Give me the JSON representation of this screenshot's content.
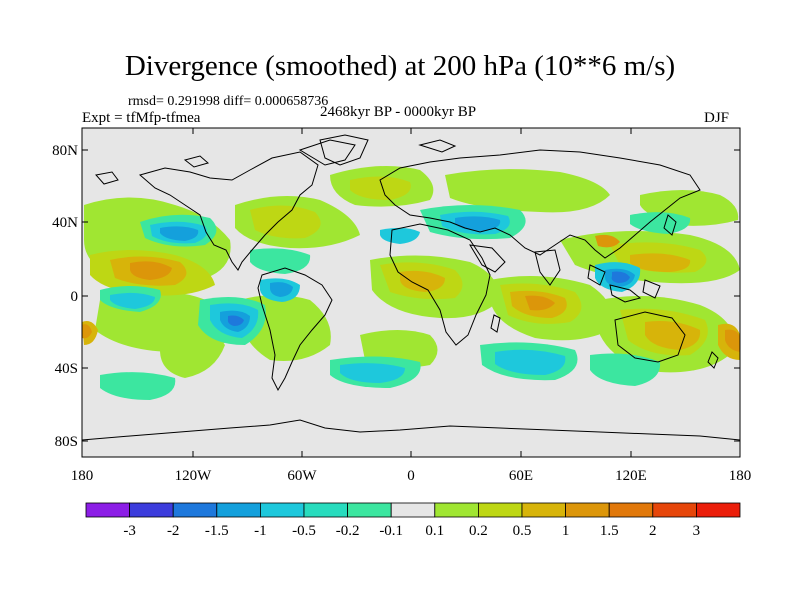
{
  "title": "Divergence (smoothed) at 200 hPa (10**6 m/s)",
  "subtitle_stats": "rmsd= 0.291998 diff= 0.000658736",
  "experiment": "Expt = tfMfp-tfmea",
  "period": "2468kyr BP - 0000kyr BP",
  "season": "DJF",
  "map": {
    "lat_ticks": [
      "80N",
      "40N",
      "0",
      "40S",
      "80S"
    ],
    "lon_ticks": [
      "180",
      "120W",
      "60W",
      "0",
      "60E",
      "120E",
      "180"
    ]
  },
  "colorbar": {
    "colors": [
      "#8c1ee6",
      "#3c3cdc",
      "#1e78dc",
      "#14a0dc",
      "#1ec8dc",
      "#28dcbe",
      "#3ce6a0",
      "#e6e6e6",
      "#a0e632",
      "#bed714",
      "#d7b40a",
      "#dc960a",
      "#e1780a",
      "#e6460a",
      "#eb1e0a"
    ],
    "labels": [
      "-3",
      "-2",
      "-1.5",
      "-1",
      "-0.5",
      "-0.2",
      "-0.1",
      "0.1",
      "0.2",
      "0.5",
      "1",
      "1.5",
      "2",
      "3"
    ]
  }
}
